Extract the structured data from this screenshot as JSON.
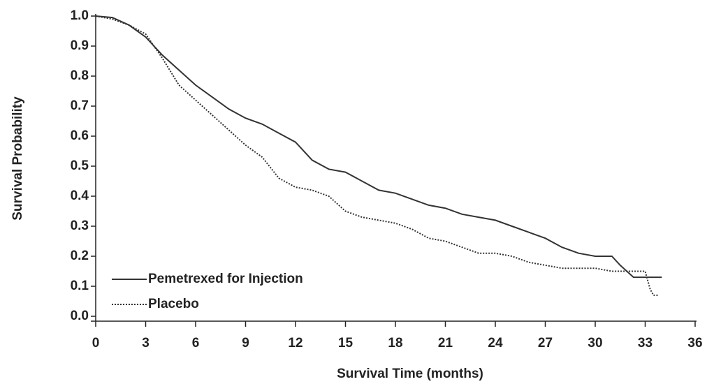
{
  "chart_data": {
    "type": "line",
    "xlabel": "Survival Time (months)",
    "ylabel": "Survival Probability",
    "xlim": [
      0,
      36
    ],
    "xticks": [
      0,
      3,
      6,
      9,
      12,
      15,
      18,
      21,
      24,
      27,
      30,
      33,
      36
    ],
    "ylim": [
      0,
      1
    ],
    "yticks": [
      {
        "value": 0,
        "label": "0.0"
      },
      0.1,
      0.2,
      0.3,
      0.4,
      0.5,
      0.6,
      0.7,
      0.8,
      0.9,
      {
        "value": 1,
        "label": "1.0"
      }
    ],
    "legend": "lower left",
    "series": [
      {
        "name": "Pemetrexed for Injection",
        "color": "#333333",
        "dash": "solid",
        "x": [
          0,
          1,
          2,
          3,
          4,
          5,
          6,
          7,
          8,
          9,
          10,
          11,
          12,
          13,
          14,
          15,
          16,
          17,
          18,
          19,
          20,
          21,
          22,
          23,
          24,
          25,
          26,
          27,
          28,
          29,
          30,
          31,
          31.5,
          32.3,
          34
        ],
        "values": [
          1.0,
          0.995,
          0.97,
          0.93,
          0.87,
          0.82,
          0.77,
          0.73,
          0.69,
          0.66,
          0.64,
          0.61,
          0.58,
          0.52,
          0.49,
          0.48,
          0.45,
          0.42,
          0.41,
          0.39,
          0.37,
          0.36,
          0.34,
          0.33,
          0.32,
          0.3,
          0.28,
          0.26,
          0.23,
          0.21,
          0.2,
          0.2,
          0.17,
          0.13,
          0.13
        ]
      },
      {
        "name": "Placebo",
        "color": "#333333",
        "dash": "dotted",
        "x": [
          0,
          1,
          2,
          3,
          4,
          5,
          6,
          7,
          8,
          9,
          10,
          11,
          12,
          13,
          14,
          15,
          16,
          17,
          18,
          19,
          20,
          21,
          22,
          23,
          24,
          25,
          26,
          27,
          28,
          30,
          31,
          33,
          33.3,
          33.5,
          33.8
        ],
        "values": [
          1.0,
          0.99,
          0.97,
          0.94,
          0.86,
          0.77,
          0.72,
          0.67,
          0.62,
          0.57,
          0.53,
          0.46,
          0.43,
          0.42,
          0.4,
          0.35,
          0.33,
          0.32,
          0.31,
          0.29,
          0.26,
          0.25,
          0.23,
          0.21,
          0.21,
          0.2,
          0.18,
          0.17,
          0.16,
          0.16,
          0.15,
          0.15,
          0.09,
          0.07,
          0.07
        ]
      }
    ]
  }
}
